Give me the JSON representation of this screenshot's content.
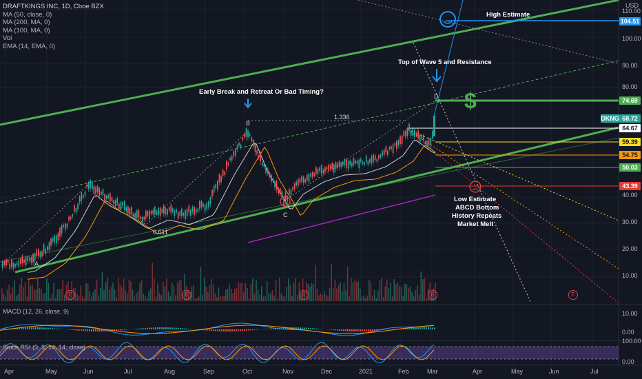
{
  "legend": {
    "symbol": "DRAFTKINGS INC, 1D, Cboe BZX",
    "lines": [
      "MA (50, close, 0)",
      "MA (200, MA, 0)",
      "MA (100, MA, 0)",
      "Vol",
      "EMA (14, EMA, 0)"
    ]
  },
  "currency": "USD",
  "annotations": {
    "high_estimate": "High Estimate",
    "wave5": "Top of Wave 5 and Resistance",
    "early_break": "Early Break and Retreat Or Bad Timing?",
    "low_estimate_lines": [
      "Low Estimate",
      "ABCD Bottom",
      "History Repeats",
      "Market Melt"
    ],
    "fib_1336": "1.336",
    "fib_0611": "0.611",
    "dollar": "$"
  },
  "points": {
    "A": "A",
    "B": "B",
    "C": "C",
    "D": "D"
  },
  "price_tags": [
    {
      "label": "104.51",
      "bg": "#2196f3",
      "fg": "#ffffff"
    },
    {
      "label": "74.69",
      "bg": "#4caf50",
      "fg": "#ffffff"
    },
    {
      "label": "DKNG",
      "bg": "#26a69a",
      "fg": "#ffffff"
    },
    {
      "label": "68.72",
      "bg": "#26a69a",
      "fg": "#ffffff"
    },
    {
      "label": "64.67",
      "bg": "#ffffff",
      "fg": "#131722"
    },
    {
      "label": "59.39",
      "bg": "#f7d92a",
      "fg": "#131722"
    },
    {
      "label": "54.75",
      "bg": "#ff9800",
      "fg": "#131722"
    },
    {
      "label": "50.03",
      "bg": "#4caf50",
      "fg": "#ffffff"
    },
    {
      "label": "43.39",
      "bg": "#e53935",
      "fg": "#ffffff"
    }
  ],
  "price_ticks": [
    "110.00",
    "100.00",
    "90.00",
    "80.00",
    "40.00",
    "30.00",
    "20.00",
    "10.00"
  ],
  "macd": {
    "label": "MACD (12, 26, close, 9)",
    "ticks": [
      "10.00",
      "0.00"
    ]
  },
  "stoch": {
    "label": "Stoch RSI (3, 3, 14, 14, close)",
    "ticks": [
      "100.00",
      "0.00"
    ]
  },
  "time_axis": [
    "Apr",
    "May",
    "Jun",
    "Jul",
    "Aug",
    "Sep",
    "Oct",
    "Nov",
    "Dec",
    "2021",
    "Feb",
    "Mar",
    "Apr",
    "May",
    "Jun",
    "Jul"
  ],
  "earnings_badge": "E",
  "colors": {
    "bg": "#131722",
    "up": "#26a69a",
    "down": "#ef5350",
    "channel": "#4caf50",
    "wave": "#2196f3"
  }
}
